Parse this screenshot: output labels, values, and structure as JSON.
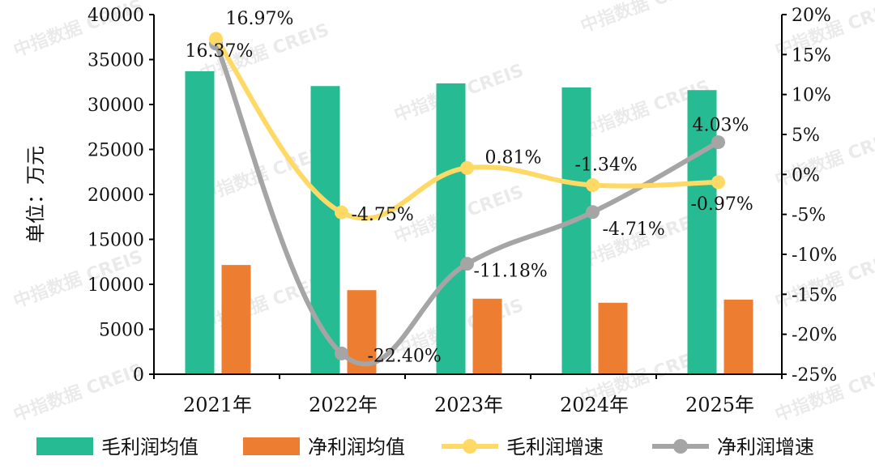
{
  "chart_data": {
    "type": "bar+line",
    "categories": [
      "2021年",
      "2022年",
      "2023年",
      "2024年",
      "2025年"
    ],
    "ylabel": "单位：万元",
    "ylim": [
      0,
      40000
    ],
    "yticks": [
      0,
      5000,
      10000,
      15000,
      20000,
      25000,
      30000,
      35000,
      40000
    ],
    "y2lim": [
      -25,
      20
    ],
    "y2ticks": [
      "-25%",
      "-20%",
      "-15%",
      "-10%",
      "-5%",
      "0%",
      "5%",
      "10%",
      "15%",
      "20%"
    ],
    "y2tick_values": [
      -25,
      -20,
      -15,
      -10,
      -5,
      0,
      5,
      10,
      15,
      20
    ],
    "grid": false,
    "legend_position": "bottom",
    "bar_series": [
      {
        "name": "毛利润均值",
        "color": "#26BB92",
        "values": [
          33700,
          32050,
          32350,
          31900,
          31600
        ]
      },
      {
        "name": "净利润均值",
        "color": "#ED7D31",
        "values": [
          12150,
          9350,
          8400,
          7950,
          8300
        ]
      }
    ],
    "line_series": [
      {
        "name": "毛利润增速",
        "color": "#FFD966",
        "values": [
          16.97,
          -4.75,
          0.81,
          -1.34,
          -0.97
        ],
        "labels": [
          "16.97%",
          "-4.75%",
          "0.81%",
          "-1.34%",
          "-0.97%"
        ]
      },
      {
        "name": "净利润增速",
        "color": "#A5A5A5",
        "values": [
          16.37,
          -22.4,
          -11.18,
          -4.71,
          4.03
        ],
        "labels": [
          "16.37%",
          "-22.40%",
          "-11.18%",
          "-4.71%",
          "4.03%"
        ]
      }
    ]
  },
  "watermark": "中指数据 CREIS"
}
